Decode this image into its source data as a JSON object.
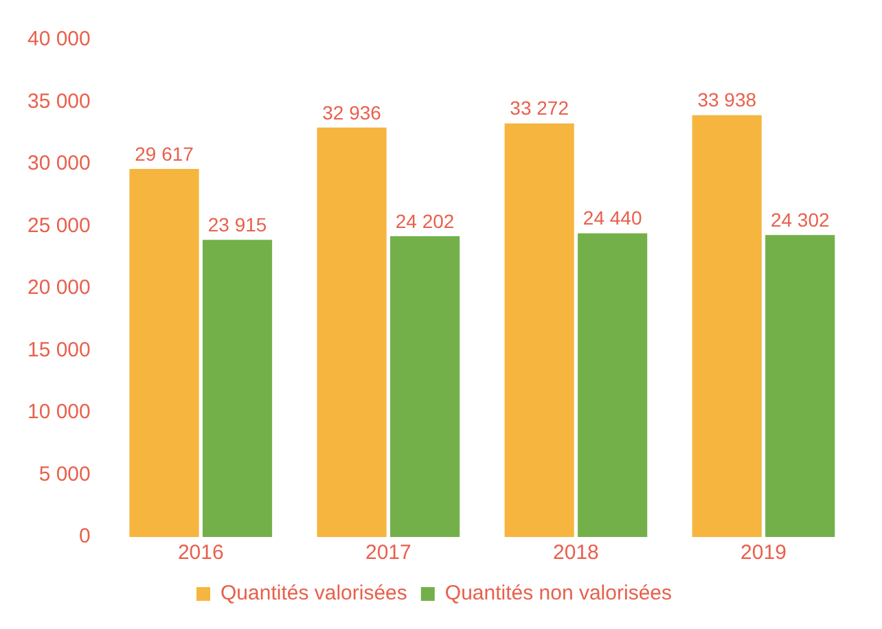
{
  "chart_data": {
    "type": "bar",
    "categories": [
      "2016",
      "2017",
      "2018",
      "2019"
    ],
    "series": [
      {
        "name": "Quantités valorisées",
        "color": "#f6b53f",
        "values": [
          29617,
          32936,
          33272,
          33938
        ],
        "value_labels": [
          "29 617",
          "32 936",
          "33 272",
          "33 938"
        ]
      },
      {
        "name": "Quantités non valorisées",
        "color": "#74b04a",
        "values": [
          23915,
          24202,
          24440,
          24302
        ],
        "value_labels": [
          "23 915",
          "24 202",
          "24 440",
          "24 302"
        ]
      }
    ],
    "ylim": [
      0,
      40000
    ],
    "yticks": [
      {
        "value": 0,
        "label": "0"
      },
      {
        "value": 5000,
        "label": "5 000"
      },
      {
        "value": 10000,
        "label": "10 000"
      },
      {
        "value": 15000,
        "label": "15 000"
      },
      {
        "value": 20000,
        "label": "20 000"
      },
      {
        "value": 25000,
        "label": "25 000"
      },
      {
        "value": 30000,
        "label": "30 000"
      },
      {
        "value": 35000,
        "label": "35 000"
      },
      {
        "value": 40000,
        "label": "40 000"
      }
    ],
    "grid": false,
    "legend": "bottom"
  }
}
